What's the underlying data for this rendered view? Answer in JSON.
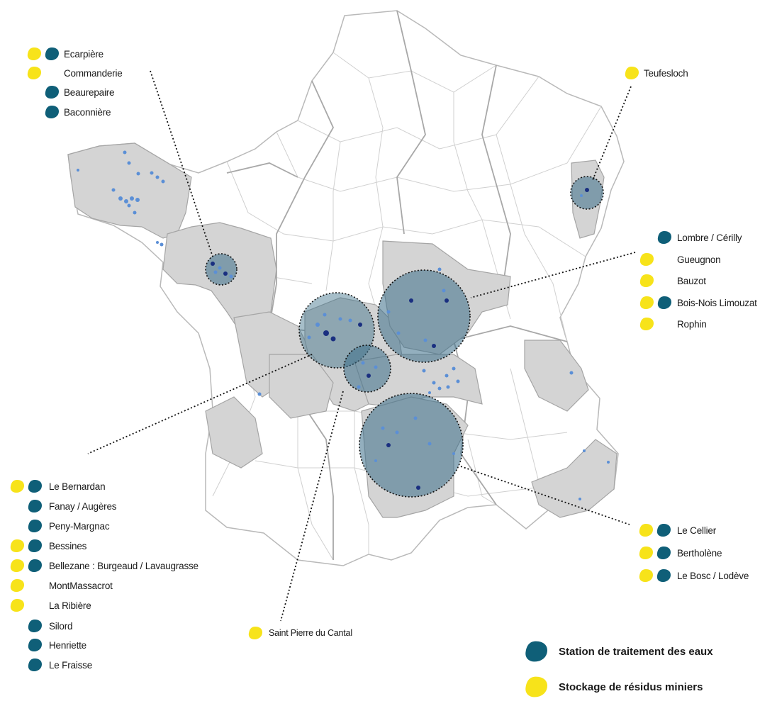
{
  "colors": {
    "station": "#0f5f78",
    "stockage": "#f7e31a",
    "region_fill": "#d4d4d4",
    "circle_fill": "#3a6e88",
    "site_dot": "#5b8fd6",
    "site_dot_dark": "#1a2f80"
  },
  "groups": [
    {
      "id": "bretagne",
      "sites": [
        {
          "name": "Ecarpière",
          "stockage": true,
          "station": true
        },
        {
          "name": "Commanderie",
          "stockage": true,
          "station": false
        },
        {
          "name": "Beaurepaire",
          "stockage": false,
          "station": true
        },
        {
          "name": "Baconnière",
          "stockage": false,
          "station": true
        }
      ]
    },
    {
      "id": "alsace",
      "sites": [
        {
          "name": "Teufesloch",
          "stockage": true,
          "station": false
        }
      ]
    },
    {
      "id": "bourgogne",
      "sites": [
        {
          "name": "Lombre / Cérilly",
          "stockage": false,
          "station": true
        },
        {
          "name": "Gueugnon",
          "stockage": true,
          "station": false
        },
        {
          "name": "Bauzot",
          "stockage": true,
          "station": false
        },
        {
          "name": "Bois-Nois Limouzat",
          "stockage": true,
          "station": true
        },
        {
          "name": "Rophin",
          "stockage": true,
          "station": false
        }
      ]
    },
    {
      "id": "limousin",
      "sites": [
        {
          "name": "Le Bernardan",
          "stockage": true,
          "station": true
        },
        {
          "name": "Fanay / Augères",
          "stockage": false,
          "station": true
        },
        {
          "name": "Peny-Margnac",
          "stockage": false,
          "station": true
        },
        {
          "name": "Bessines",
          "stockage": true,
          "station": true
        },
        {
          "name": "Bellezane : Burgeaud / Lavaugrasse",
          "stockage": true,
          "station": true
        },
        {
          "name": "MontMassacrot",
          "stockage": true,
          "station": false
        },
        {
          "name": "La Ribière",
          "stockage": true,
          "station": false
        },
        {
          "name": "Silord",
          "stockage": false,
          "station": true
        },
        {
          "name": "Henriette",
          "stockage": false,
          "station": true
        },
        {
          "name": "Le Fraisse",
          "stockage": false,
          "station": true
        }
      ]
    },
    {
      "id": "cantal",
      "sites": [
        {
          "name": "Saint Pierre du Cantal",
          "stockage": true,
          "station": false
        }
      ]
    },
    {
      "id": "cevennes",
      "sites": [
        {
          "name": "Le Cellier",
          "stockage": true,
          "station": true
        },
        {
          "name": "Bertholène",
          "stockage": true,
          "station": true
        },
        {
          "name": "Le Bosc / Lodève",
          "stockage": true,
          "station": true
        }
      ]
    }
  ],
  "legend": {
    "station_label": "Station de traitement des eaux",
    "stockage_label": "Stockage de résidus miniers"
  }
}
